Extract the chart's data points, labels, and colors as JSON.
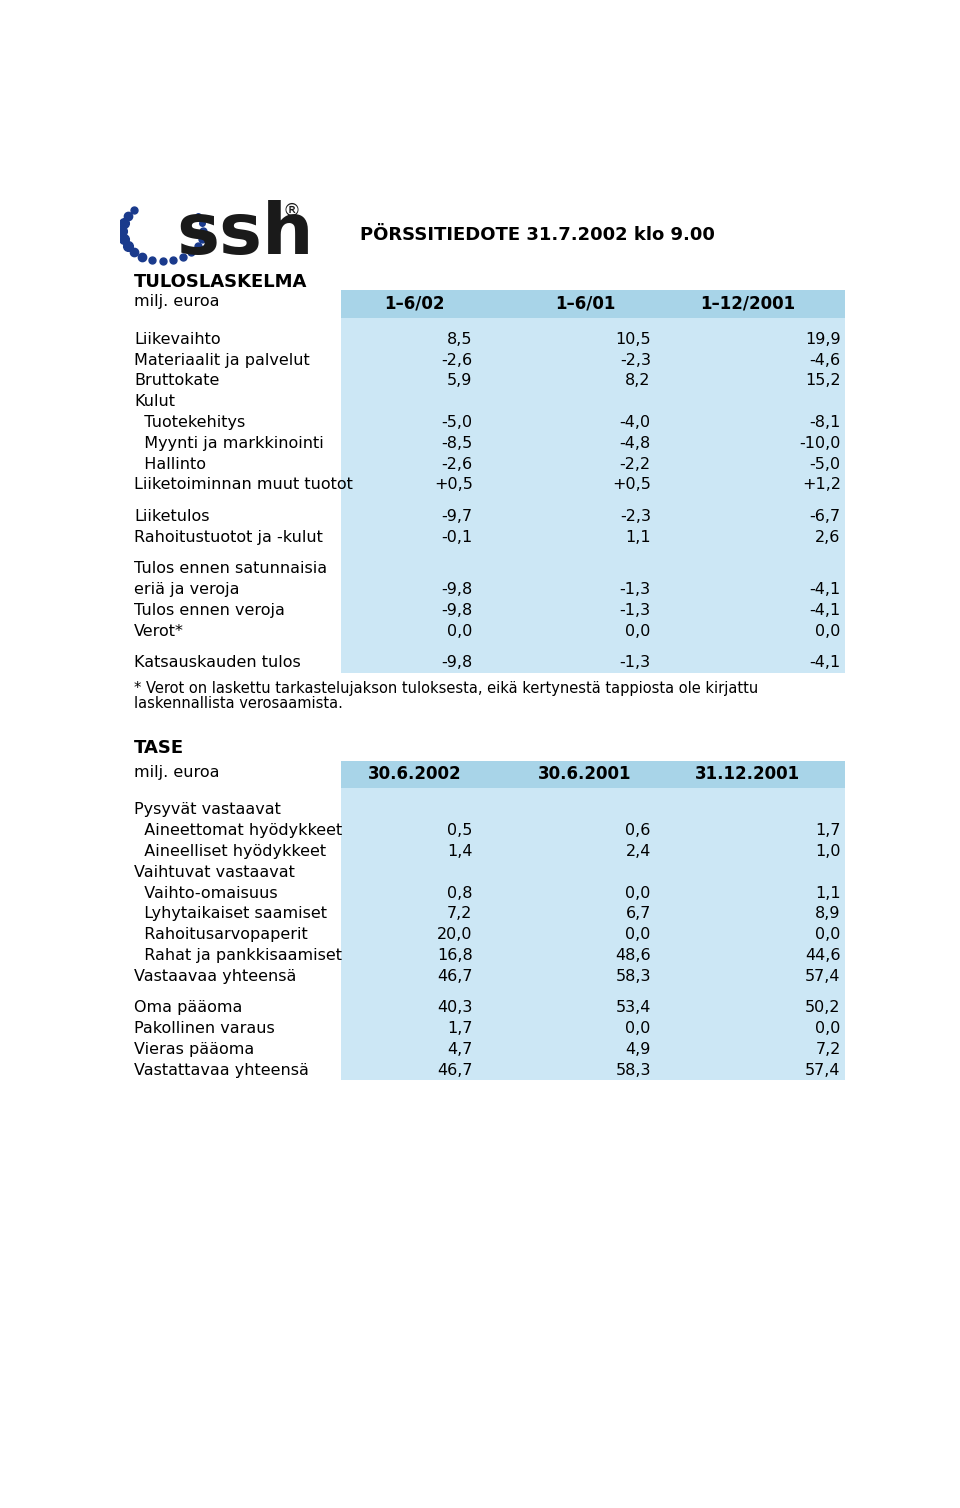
{
  "title_right": "PÖRSSITIEDOTE 31.7.2002 klo 9.00",
  "section1_title": "TULOSLASKELMA",
  "section1_header_label": "milj. euroa",
  "section1_col1": "1–6/02",
  "section1_col2": "1–6/01",
  "section1_col3": "1–12/2001",
  "section1_rows": [
    {
      "label": "Liikevaihto",
      "indent": false,
      "bold": false,
      "v1": "8,5",
      "v2": "10,5",
      "v3": "19,9",
      "spacer_before": true
    },
    {
      "label": "Materiaalit ja palvelut",
      "indent": false,
      "bold": false,
      "v1": "-2,6",
      "v2": "-2,3",
      "v3": "-4,6",
      "spacer_before": false
    },
    {
      "label": "Bruttokate",
      "indent": false,
      "bold": false,
      "v1": "5,9",
      "v2": "8,2",
      "v3": "15,2",
      "spacer_before": false
    },
    {
      "label": "Kulut",
      "indent": false,
      "bold": false,
      "v1": "",
      "v2": "",
      "v3": "",
      "spacer_before": false
    },
    {
      "label": "  Tuotekehitys",
      "indent": true,
      "bold": false,
      "v1": "-5,0",
      "v2": "-4,0",
      "v3": "-8,1",
      "spacer_before": false
    },
    {
      "label": "  Myynti ja markkinointi",
      "indent": true,
      "bold": false,
      "v1": "-8,5",
      "v2": "-4,8",
      "v3": "-10,0",
      "spacer_before": false
    },
    {
      "label": "  Hallinto",
      "indent": true,
      "bold": false,
      "v1": "-2,6",
      "v2": "-2,2",
      "v3": "-5,0",
      "spacer_before": false
    },
    {
      "label": "Liiketoiminnan muut tuotot",
      "indent": false,
      "bold": false,
      "v1": "+0,5",
      "v2": "+0,5",
      "v3": "+1,2",
      "spacer_before": false
    },
    {
      "label": "Liiketulos",
      "indent": false,
      "bold": false,
      "v1": "-9,7",
      "v2": "-2,3",
      "v3": "-6,7",
      "spacer_before": true
    },
    {
      "label": "Rahoitustuotot ja -kulut",
      "indent": false,
      "bold": false,
      "v1": "-0,1",
      "v2": "1,1",
      "v3": "2,6",
      "spacer_before": false
    },
    {
      "label": "Tulos ennen satunnaisia",
      "indent": false,
      "bold": false,
      "v1": "",
      "v2": "",
      "v3": "",
      "spacer_before": true
    },
    {
      "label": "eriä ja veroja",
      "indent": false,
      "bold": false,
      "v1": "-9,8",
      "v2": "-1,3",
      "v3": "-4,1",
      "spacer_before": false
    },
    {
      "label": "Tulos ennen veroja",
      "indent": false,
      "bold": false,
      "v1": "-9,8",
      "v2": "-1,3",
      "v3": "-4,1",
      "spacer_before": false
    },
    {
      "label": "Verot*",
      "indent": false,
      "bold": false,
      "v1": "0,0",
      "v2": "0,0",
      "v3": "0,0",
      "spacer_before": false
    },
    {
      "label": "Katsauskauden tulos",
      "indent": false,
      "bold": false,
      "v1": "-9,8",
      "v2": "-1,3",
      "v3": "-4,1",
      "spacer_before": true
    }
  ],
  "footnote_lines": [
    "* Verot on laskettu tarkastelujakson tuloksesta, eikä kertynestä tappiosta ole kirjattu",
    "laskennallista verosaamista."
  ],
  "section2_title": "TASE",
  "section2_header_label": "milj. euroa",
  "section2_col1": "30.6.2002",
  "section2_col2": "30.6.2001",
  "section2_col3": "31.12.2001",
  "section2_rows": [
    {
      "label": "Pysyvät vastaavat",
      "indent": false,
      "bold": false,
      "v1": "",
      "v2": "",
      "v3": "",
      "spacer_before": true
    },
    {
      "label": "  Aineettomat hyödykkeet",
      "indent": true,
      "bold": false,
      "v1": "0,5",
      "v2": "0,6",
      "v3": "1,7",
      "spacer_before": false
    },
    {
      "label": "  Aineelliset hyödykkeet",
      "indent": true,
      "bold": false,
      "v1": "1,4",
      "v2": "2,4",
      "v3": "1,0",
      "spacer_before": false
    },
    {
      "label": "Vaihtuvat vastaavat",
      "indent": false,
      "bold": false,
      "v1": "",
      "v2": "",
      "v3": "",
      "spacer_before": false
    },
    {
      "label": "  Vaihto-omaisuus",
      "indent": true,
      "bold": false,
      "v1": "0,8",
      "v2": "0,0",
      "v3": "1,1",
      "spacer_before": false
    },
    {
      "label": "  Lyhytaikaiset saamiset",
      "indent": true,
      "bold": false,
      "v1": "7,2",
      "v2": "6,7",
      "v3": "8,9",
      "spacer_before": false
    },
    {
      "label": "  Rahoitusarvopaperit",
      "indent": true,
      "bold": false,
      "v1": "20,0",
      "v2": "0,0",
      "v3": "0,0",
      "spacer_before": false
    },
    {
      "label": "  Rahat ja pankkisaamiset",
      "indent": true,
      "bold": false,
      "v1": "16,8",
      "v2": "48,6",
      "v3": "44,6",
      "spacer_before": false
    },
    {
      "label": "Vastaavaa yhteensä",
      "indent": false,
      "bold": false,
      "v1": "46,7",
      "v2": "58,3",
      "v3": "57,4",
      "spacer_before": false
    },
    {
      "label": "Oma pääoma",
      "indent": false,
      "bold": false,
      "v1": "40,3",
      "v2": "53,4",
      "v3": "50,2",
      "spacer_before": true
    },
    {
      "label": "Pakollinen varaus",
      "indent": false,
      "bold": false,
      "v1": "1,7",
      "v2": "0,0",
      "v3": "0,0",
      "spacer_before": false
    },
    {
      "label": "Vieras pääoma",
      "indent": false,
      "bold": false,
      "v1": "4,7",
      "v2": "4,9",
      "v3": "7,2",
      "spacer_before": false
    },
    {
      "label": "Vastattavaa yhteensä",
      "indent": false,
      "bold": false,
      "v1": "46,7",
      "v2": "58,3",
      "v3": "57,4",
      "spacer_before": false
    }
  ],
  "bg_color": "#ffffff",
  "header_bg": "#a8d4e8",
  "col_bg": "#cce7f5",
  "text_color": "#000000"
}
